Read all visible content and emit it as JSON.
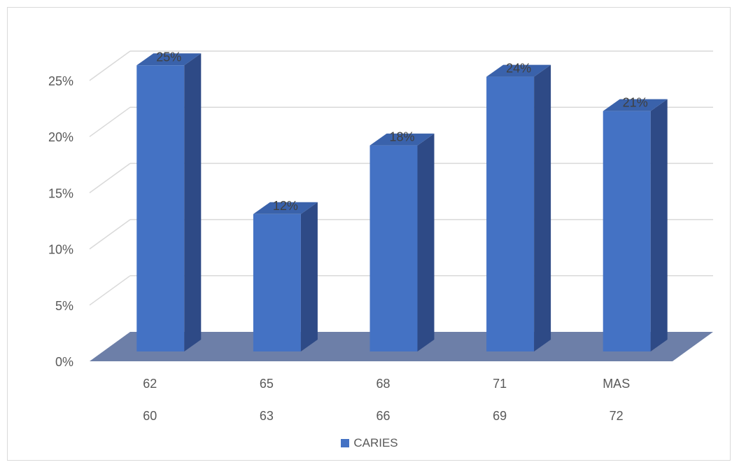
{
  "chart_data": {
    "type": "bar",
    "style": "3d-column",
    "categories_line1": [
      "62",
      "65",
      "68",
      "71",
      "MAS"
    ],
    "categories_line2": [
      "60",
      "63",
      "66",
      "69",
      "72"
    ],
    "series": [
      {
        "name": "CARIES",
        "values": [
          25,
          12,
          18,
          24,
          21
        ],
        "labels": [
          "25%",
          "12%",
          "18%",
          "24%",
          "21%"
        ]
      }
    ],
    "y_ticks": [
      "0%",
      "5%",
      "10%",
      "15%",
      "20%",
      "25%"
    ],
    "ylim": [
      0,
      25
    ],
    "grid": true,
    "legend_position": "bottom",
    "colors": {
      "bar_front": "#4472c4",
      "bar_side": "#2e4a86",
      "bar_top": "#3a62ab",
      "floor": "#6d7fa8",
      "grid": "#d9d9d9"
    }
  }
}
